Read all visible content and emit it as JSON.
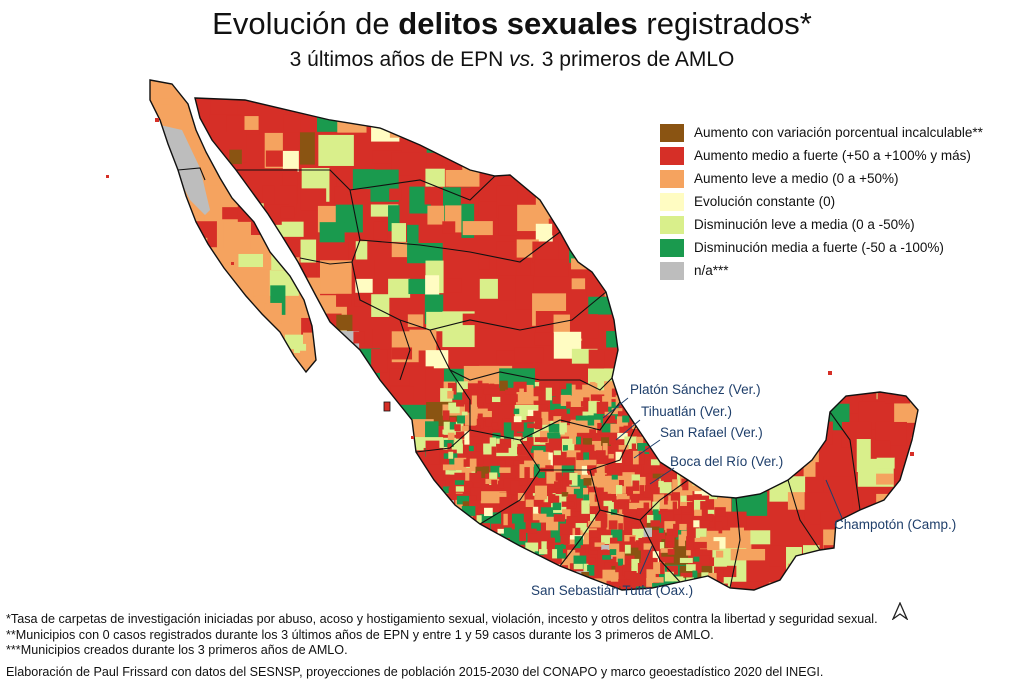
{
  "title": {
    "part1": "Evolución de ",
    "bold": "delitos sexuales",
    "part2": " registrados*"
  },
  "subtitle": {
    "part1": "3 últimos años de EPN ",
    "italic": "vs.",
    "part2": " 3 primeros de AMLO"
  },
  "legend": [
    {
      "label": "Aumento con variación porcentual incalculable**",
      "color": "#8a5412"
    },
    {
      "label": "Aumento medio a fuerte (+50 a +100% y más)",
      "color": "#d62f27"
    },
    {
      "label": "Aumento leve a medio (0 a +50%)",
      "color": "#f5a35f"
    },
    {
      "label": "Evolución constante (0)",
      "color": "#fffcc2"
    },
    {
      "label": "Disminución leve a media (0 a -50%)",
      "color": "#d9ef8b"
    },
    {
      "label": "Disminución media a fuerte (-50 a -100%)",
      "color": "#1a9a4e"
    },
    {
      "label": "n/a***",
      "color": "#bdbdbd"
    }
  ],
  "callouts": {
    "platon": "Platón Sánchez (Ver.)",
    "tihuatlan": "Tihuatlán (Ver.)",
    "sanrafael": "San Rafael (Ver.)",
    "bocadelrio": "Boca del Río (Ver.)",
    "champoton": "Champotón (Camp.)",
    "tutla": "San Sebastián Tutla (Oax.)"
  },
  "footnotes": [
    "*Tasa de carpetas de investigación iniciadas por abuso, acoso y hostigamiento sexual, violación, incesto y otros delitos contra la libertad y seguridad sexual.",
    "**Municipios con 0 casos registrados durante los 3 últimos años de EPN y entre 1 y 59 casos durante los 3 primeros de AMLO.",
    "***Municipios creados durante los 3 primeros años de AMLO."
  ],
  "credit": "Elaboración de Paul Frissard con datos del SESNSP, proyecciones de población 2015-2030 del CONAPO y marco geoestadístico 2020 del INEGI.",
  "colors": {
    "callout_text": "#1f3f6b",
    "map_border": "#111111"
  }
}
